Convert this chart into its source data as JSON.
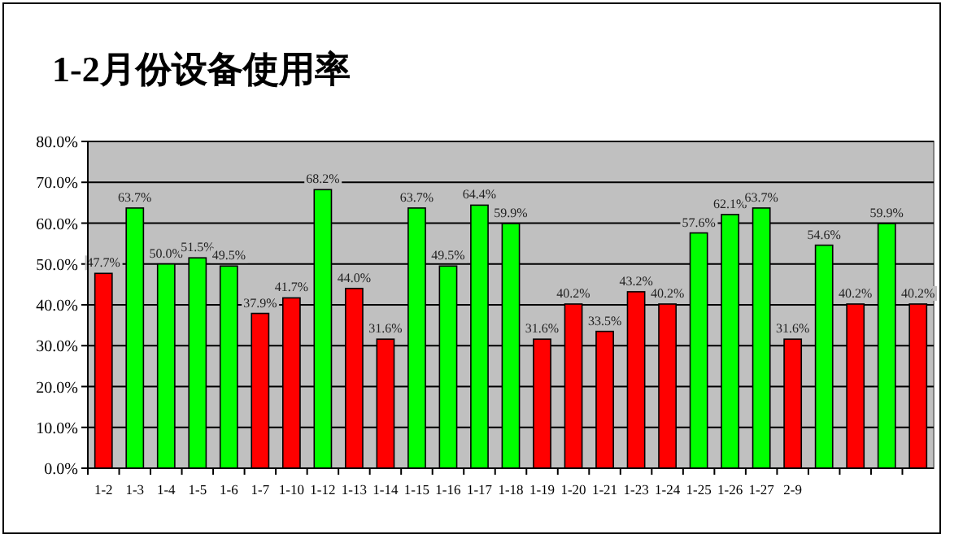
{
  "chart_data": {
    "type": "bar",
    "title": "1-2月份设备使用率",
    "categories": [
      "1-2",
      "1-3",
      "1-4",
      "1-5",
      "1-6",
      "1-7",
      "1-10",
      "1-12",
      "1-13",
      "1-14",
      "1-15",
      "1-16",
      "1-17",
      "1-18",
      "1-19",
      "1-20",
      "1-21",
      "1-23",
      "1-24",
      "1-25",
      "1-26",
      "1-27",
      "2-9",
      null,
      null,
      null,
      null
    ],
    "values": [
      47.7,
      63.7,
      50.0,
      51.5,
      49.5,
      37.9,
      41.7,
      68.2,
      44.0,
      31.6,
      63.7,
      49.5,
      64.4,
      59.9,
      31.6,
      40.2,
      33.5,
      43.2,
      40.2,
      57.6,
      62.1,
      63.7,
      31.6,
      54.6,
      40.2,
      59.9,
      40.2
    ],
    "value_labels": [
      "47.7%",
      "63.7%",
      "50.0%",
      "51.5%",
      "49.5%",
      "37.9%",
      "41.7%",
      "68.2%",
      "44.0%",
      "31.6%",
      "63.7%",
      "49.5%",
      "64.4%",
      "59.9%",
      "31.6%",
      "40.2%",
      "33.5%",
      "43.2%",
      "40.2%",
      "57.6%",
      "62.1%",
      "63.7%",
      "31.6%",
      "54.6%",
      "40.2%",
      "59.9%",
      "40.2%"
    ],
    "colors": [
      "#ff0000",
      "#00ff00",
      "#00ff00",
      "#00ff00",
      "#00ff00",
      "#ff0000",
      "#ff0000",
      "#00ff00",
      "#ff0000",
      "#ff0000",
      "#00ff00",
      "#00ff00",
      "#00ff00",
      "#00ff00",
      "#ff0000",
      "#ff0000",
      "#ff0000",
      "#ff0000",
      "#ff0000",
      "#00ff00",
      "#00ff00",
      "#00ff00",
      "#ff0000",
      "#00ff00",
      "#ff0000",
      "#00ff00",
      "#ff0000"
    ],
    "ylim": [
      0,
      80
    ],
    "yticks": [
      {
        "value": 0,
        "label": "0.0%"
      },
      {
        "value": 10,
        "label": "10.0%"
      },
      {
        "value": 20,
        "label": "20.0%"
      },
      {
        "value": 30,
        "label": "30.0%"
      },
      {
        "value": 40,
        "label": "40.0%"
      },
      {
        "value": 50,
        "label": "50.0%"
      },
      {
        "value": 60,
        "label": "60.0%"
      },
      {
        "value": 70,
        "label": "70.0%"
      },
      {
        "value": 80,
        "label": "80.0%"
      }
    ],
    "grid": "y"
  }
}
